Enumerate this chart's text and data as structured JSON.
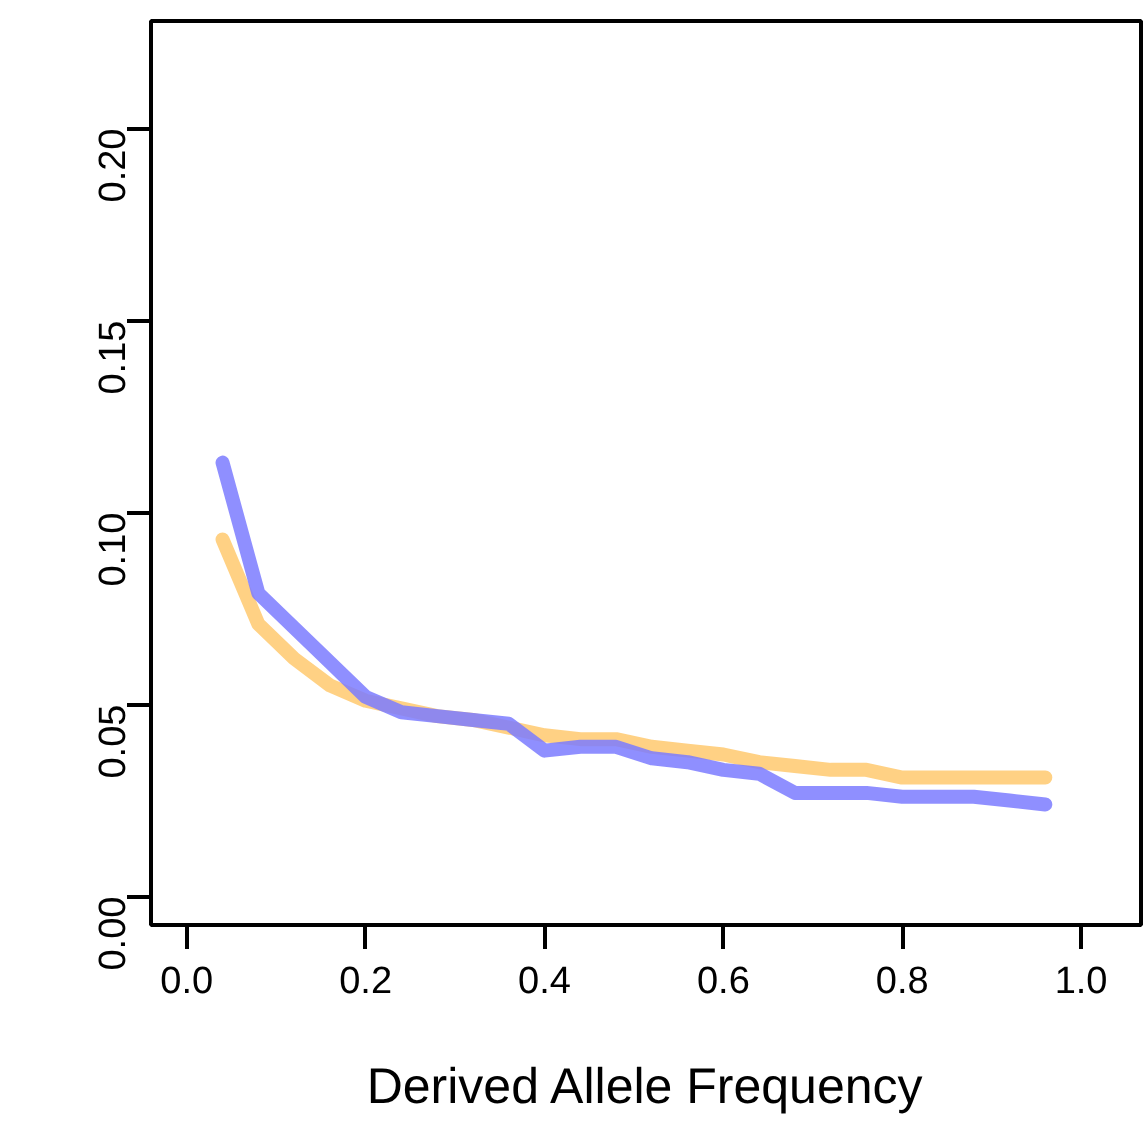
{
  "chart_data": {
    "type": "line",
    "xlabel": "Derived Allele Frequency",
    "x": [
      0.04,
      0.08,
      0.12,
      0.16,
      0.2,
      0.24,
      0.28,
      0.32,
      0.36,
      0.4,
      0.44,
      0.48,
      0.52,
      0.56,
      0.6,
      0.64,
      0.68,
      0.72,
      0.76,
      0.8,
      0.84,
      0.88,
      0.92,
      0.96
    ],
    "series": [
      {
        "color": "#ffc96e",
        "values": [
          0.093,
          0.071,
          0.062,
          0.055,
          0.051,
          0.049,
          0.047,
          0.046,
          0.044,
          0.042,
          0.041,
          0.041,
          0.039,
          0.038,
          0.037,
          0.035,
          0.034,
          0.033,
          0.033,
          0.031,
          0.031,
          0.031,
          0.031,
          0.031
        ]
      },
      {
        "color": "#7b7bff",
        "values": [
          0.113,
          0.079,
          0.07,
          0.061,
          0.052,
          0.048,
          0.047,
          0.046,
          0.045,
          0.038,
          0.039,
          0.039,
          0.036,
          0.035,
          0.033,
          0.032,
          0.027,
          0.027,
          0.027,
          0.026,
          0.026,
          0.026,
          0.025,
          0.024
        ]
      }
    ],
    "xlim": [
      -0.04,
      1.067
    ],
    "ylim": [
      -0.0074,
      0.228
    ],
    "xticks": [
      {
        "value": 0,
        "label": "0.0"
      },
      0.2,
      0.4,
      0.6,
      0.8,
      {
        "value": 1,
        "label": "1.0"
      }
    ],
    "yticks": [
      {
        "value": 0,
        "label": "0.00"
      },
      0.05,
      {
        "value": 0.1,
        "label": "0.10"
      },
      0.15,
      {
        "value": 0.2,
        "label": "0.20"
      }
    ],
    "grid": false,
    "marker": "none",
    "line_style": "solid"
  }
}
